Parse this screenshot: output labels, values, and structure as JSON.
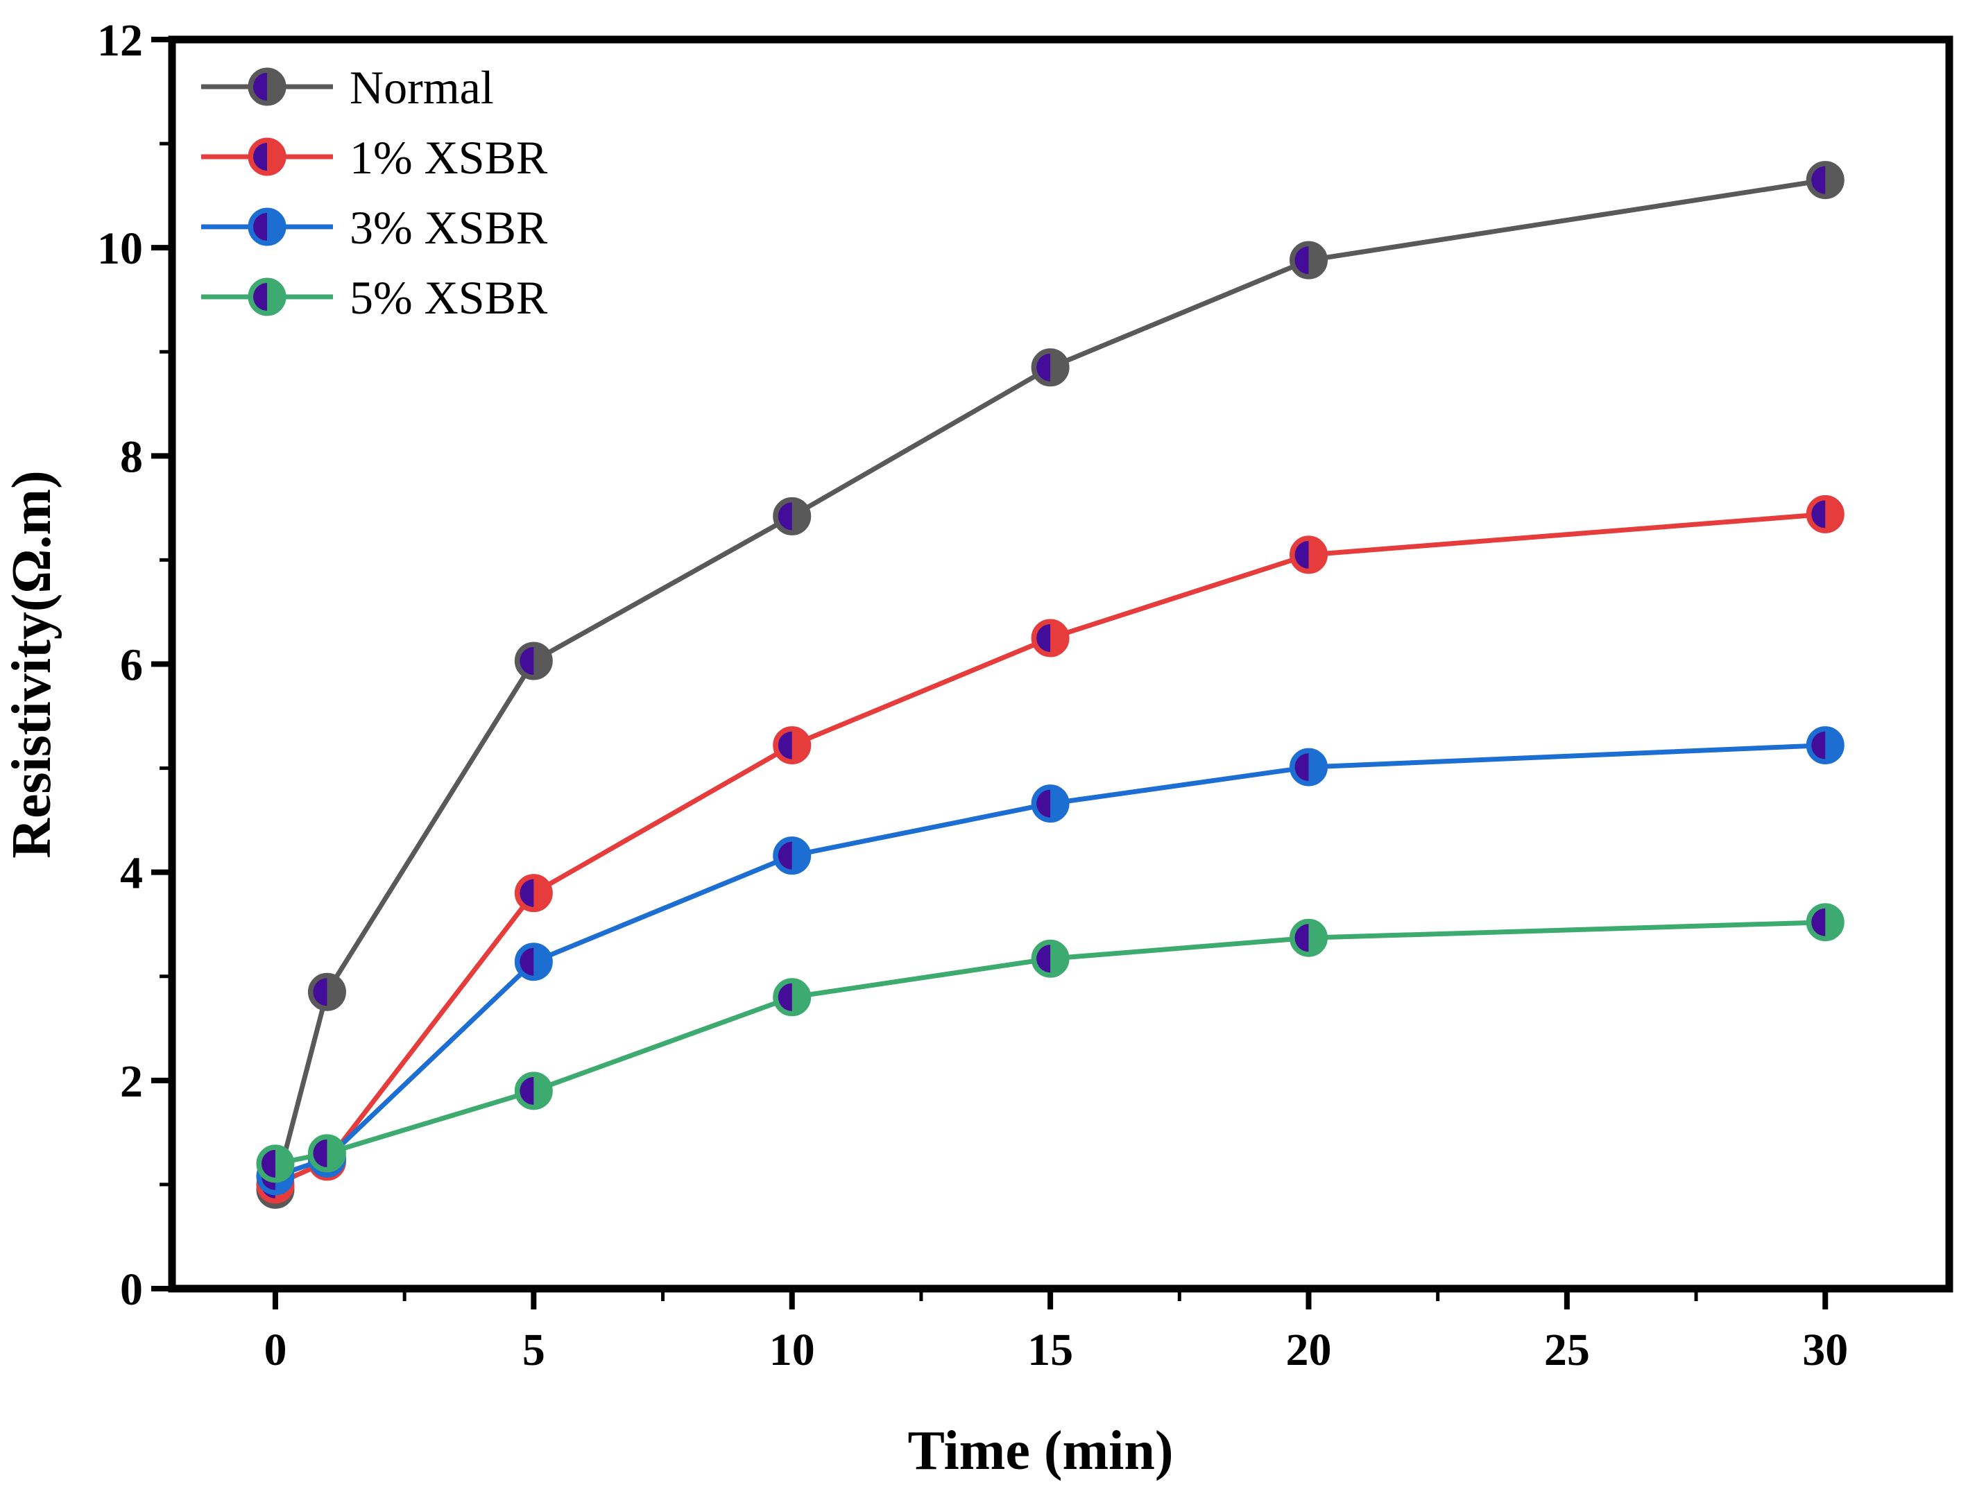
{
  "figure": {
    "background": "#ffffff",
    "frame_color": "#000000"
  },
  "chart_data": {
    "type": "line",
    "title": "",
    "xlabel": "Time (min)",
    "ylabel": "Resistivity(Ω.m)",
    "x": [
      0,
      1,
      5,
      10,
      15,
      20,
      30
    ],
    "series": [
      {
        "name": "Normal",
        "color": "#595959",
        "values": [
          0.95,
          2.85,
          6.03,
          7.42,
          8.85,
          9.88,
          10.65
        ]
      },
      {
        "name": "1% XSBR",
        "color": "#e63c3c",
        "values": [
          1.0,
          1.22,
          3.8,
          5.22,
          6.25,
          7.05,
          7.44
        ]
      },
      {
        "name": "3% XSBR",
        "color": "#1d6ed3",
        "values": [
          1.08,
          1.25,
          3.14,
          4.16,
          4.66,
          5.01,
          5.22
        ]
      },
      {
        "name": "5% XSBR",
        "color": "#3daa6f",
        "values": [
          1.2,
          1.3,
          1.9,
          2.8,
          3.17,
          3.37,
          3.52
        ]
      }
    ],
    "marker": {
      "style": "half-filled-circle",
      "half_fill_color": "#430d9a",
      "half_fill_side": "left"
    },
    "axes": {
      "xlim": [
        -2,
        32.4
      ],
      "ylim": [
        0,
        12
      ],
      "x_major_ticks": [
        0,
        5,
        10,
        15,
        20,
        25,
        30
      ],
      "x_minor_ticks": [
        2.5,
        7.5,
        12.5,
        17.5,
        22.5,
        27.5
      ],
      "y_major_ticks": [
        0,
        2,
        4,
        6,
        8,
        10,
        12
      ],
      "y_minor_ticks": [
        1,
        3,
        5,
        7,
        9,
        11
      ],
      "grid": false,
      "tick_direction": "out"
    },
    "legend": {
      "position": "upper-left",
      "entries": [
        "Normal",
        "1% XSBR",
        "3% XSBR",
        "5% XSBR"
      ]
    }
  }
}
